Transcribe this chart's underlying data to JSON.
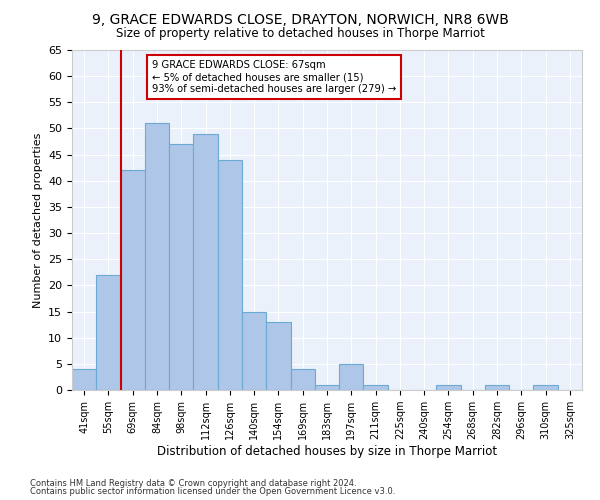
{
  "title": "9, GRACE EDWARDS CLOSE, DRAYTON, NORWICH, NR8 6WB",
  "subtitle": "Size of property relative to detached houses in Thorpe Marriot",
  "xlabel": "Distribution of detached houses by size in Thorpe Marriot",
  "ylabel": "Number of detached properties",
  "categories": [
    "41sqm",
    "55sqm",
    "69sqm",
    "84sqm",
    "98sqm",
    "112sqm",
    "126sqm",
    "140sqm",
    "154sqm",
    "169sqm",
    "183sqm",
    "197sqm",
    "211sqm",
    "225sqm",
    "240sqm",
    "254sqm",
    "268sqm",
    "282sqm",
    "296sqm",
    "310sqm",
    "325sqm"
  ],
  "values": [
    4,
    22,
    42,
    51,
    47,
    49,
    44,
    15,
    13,
    4,
    1,
    5,
    1,
    0,
    0,
    1,
    0,
    1,
    0,
    1,
    0
  ],
  "bar_color": "#aec6e8",
  "bar_edge_color": "#6aaad4",
  "vline_x_index": 2,
  "vline_color": "#cc0000",
  "annotation_text": "9 GRACE EDWARDS CLOSE: 67sqm\n← 5% of detached houses are smaller (15)\n93% of semi-detached houses are larger (279) →",
  "annotation_box_color": "#ffffff",
  "annotation_box_edge": "#cc0000",
  "ylim": [
    0,
    65
  ],
  "yticks": [
    0,
    5,
    10,
    15,
    20,
    25,
    30,
    35,
    40,
    45,
    50,
    55,
    60,
    65
  ],
  "footer1": "Contains HM Land Registry data © Crown copyright and database right 2024.",
  "footer2": "Contains public sector information licensed under the Open Government Licence v3.0.",
  "bg_color": "#eaf1fb",
  "fig_bg_color": "#ffffff"
}
